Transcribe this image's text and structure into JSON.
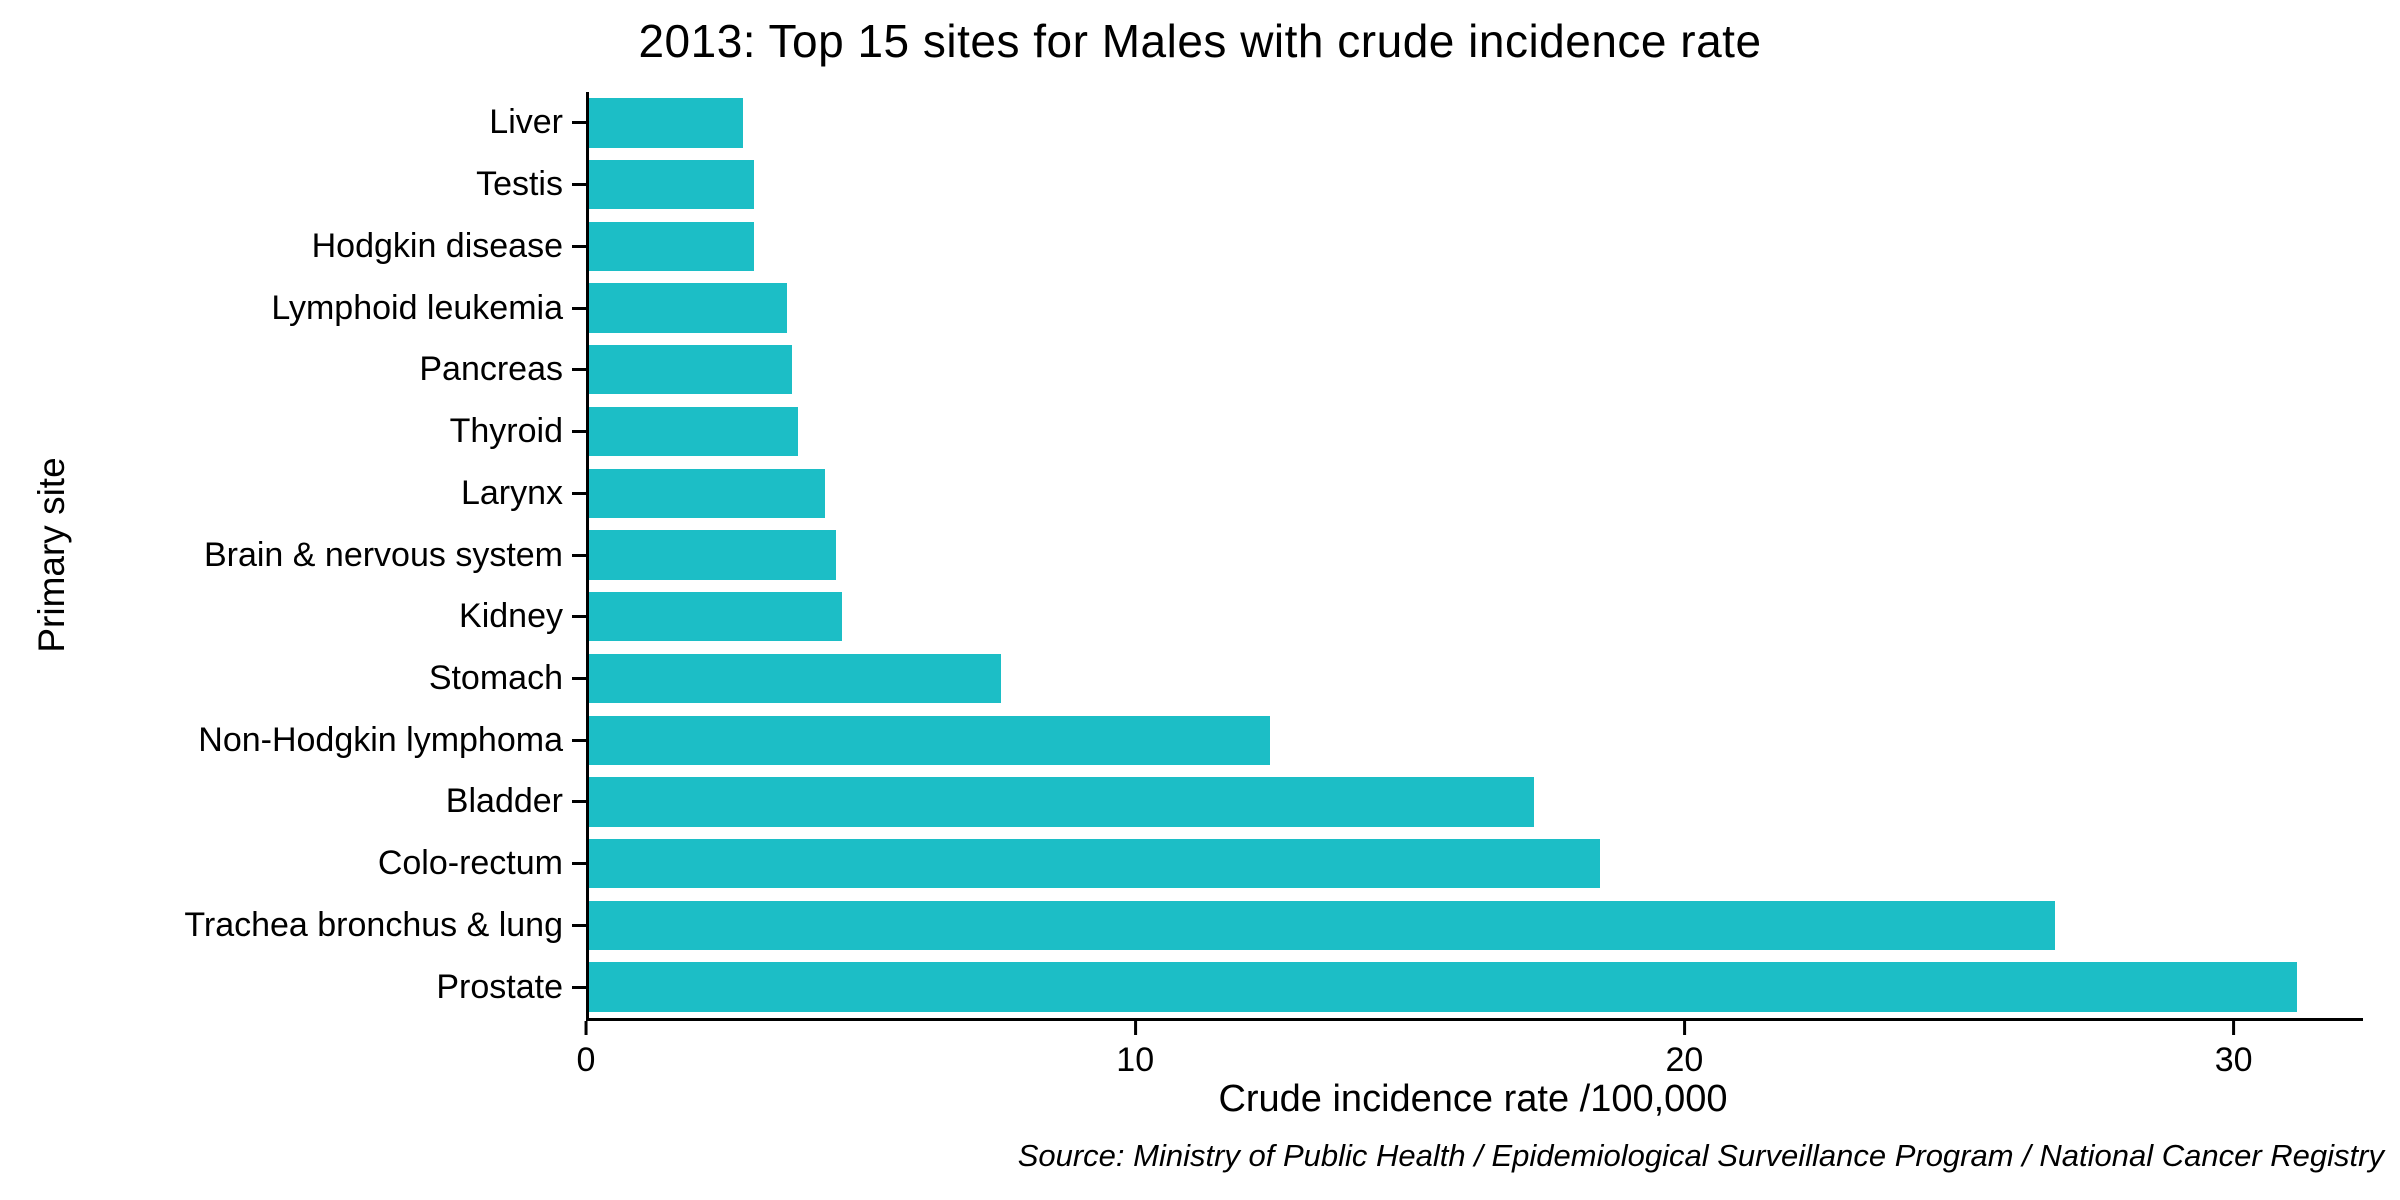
{
  "title": "2013: Top 15 sites for Males with crude incidence rate",
  "source_note": "Source: Ministry of Public Health / Epidemiological Surveillance Program / National Cancer Registry",
  "chart_data": {
    "type": "bar",
    "orientation": "horizontal",
    "title": "2013: Top 15 sites for Males with crude incidence rate",
    "categories": [
      "Liver",
      "Testis",
      "Hodgkin disease",
      "Lymphoid leukemia",
      "Pancreas",
      "Thyroid",
      "Larynx",
      "Brain & nervous system",
      "Kidney",
      "Stomach",
      "Non-Hodgkin lymphoma",
      "Bladder",
      "Colo-rectum",
      "Trachea bronchus & lung",
      "Prostate"
    ],
    "values": [
      2.8,
      3.0,
      3.0,
      3.6,
      3.7,
      3.8,
      4.3,
      4.5,
      4.6,
      7.5,
      12.4,
      17.2,
      18.4,
      26.7,
      31.1
    ],
    "xlabel": "Crude incidence rate /100,000",
    "ylabel": "Primary site",
    "xlim": [
      0,
      32.3
    ],
    "xticks": [
      0,
      10,
      20,
      30
    ],
    "bar_color": "#1CBEC6",
    "grid": false,
    "legend": false,
    "axis_color": "#000000",
    "background_color": "#ffffff"
  }
}
